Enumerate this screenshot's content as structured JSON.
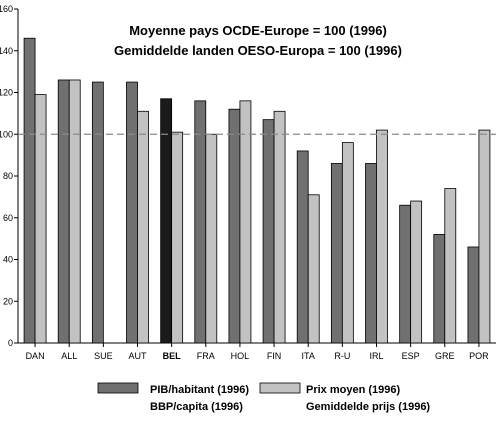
{
  "chart_data": {
    "type": "bar",
    "title_lines": [
      "Moyenne pays OCDE-Europe = 100 (1996)",
      "Gemiddelde landen OESO-Europa = 100 (1996)"
    ],
    "categories": [
      "DAN",
      "ALL",
      "SUE",
      "AUT",
      "BEL",
      "FRA",
      "HOL",
      "FIN",
      "ITA",
      "R-U",
      "IRL",
      "ESP",
      "GRE",
      "POR"
    ],
    "highlight_category": "BEL",
    "series": [
      {
        "name_lines": [
          "PIB/habitant (1996)",
          "BBP/capita (1996)"
        ],
        "color": "#707070",
        "highlight_color": "#1a1a1a",
        "values": [
          146,
          126,
          125,
          125,
          117,
          116,
          112,
          107,
          92,
          86,
          86,
          66,
          52,
          46
        ]
      },
      {
        "name_lines": [
          "Prix moyen (1996)",
          "Gemiddelde prijs (1996)"
        ],
        "color": "#c2c2c2",
        "values": [
          119,
          126,
          null,
          111,
          101,
          100,
          116,
          111,
          71,
          96,
          102,
          68,
          74,
          102
        ]
      }
    ],
    "y_ticks": [
      0,
      20,
      40,
      60,
      80,
      100,
      120,
      140,
      160
    ],
    "ylim": [
      0,
      160
    ],
    "reference_line": 100,
    "grid": false,
    "legend_position": "bottom"
  }
}
